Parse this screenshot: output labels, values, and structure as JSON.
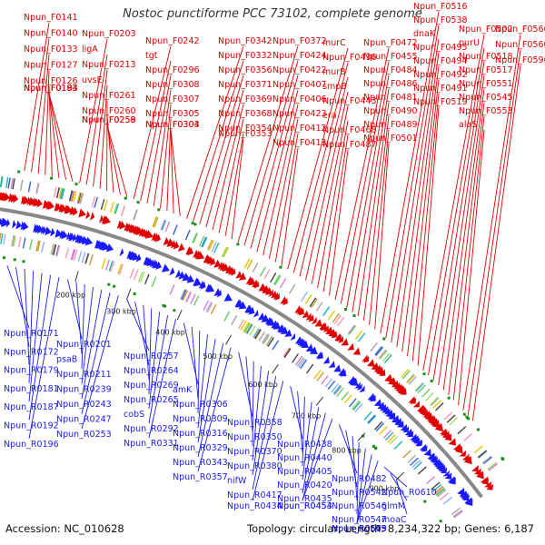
{
  "title": "Nostoc punctiforme PCC 73102, complete genome",
  "accession_text": "Accession: NC_010628",
  "summary_text": "Topology: circular; Length: 8,234,322 bp; Genes: 6,187",
  "colors": {
    "forward": "#e00000",
    "reverse": "#1a1aff",
    "backbone": "#888888"
  },
  "ticks": [
    "200 kbp",
    "300 kbp",
    "400 kbp",
    "500 kbp",
    "600 kbp",
    "700 kbp",
    "800 kbp",
    "900 kbp"
  ],
  "forward_labels": [
    "Npun_F0141",
    "Npun_F0140",
    "Npun_F0133",
    "Npun_F0127",
    "Npun_F0126",
    "Npun_F0194",
    "Npun_F0193",
    "Npun_F0183",
    "Npun_F0203",
    "ligA",
    "Npun_F0213",
    "uvsE",
    "Npun_F0261",
    "Npun_F0260",
    "Npun_F0259",
    "Npun_F0258",
    "Npun_F0242",
    "tgt",
    "Npun_F0296",
    "Npun_F0308",
    "Npun_F0307",
    "Npun_F0305",
    "Npun_F0304",
    "Npun_F0303",
    "Npun_F0342",
    "Npun_F0332",
    "Npun_F0356",
    "Npun_F0371",
    "Npun_F0369",
    "Npun_F0368",
    "Npun_F0354",
    "Npun_F0353",
    "Npun_F0372",
    "Npun_F0424",
    "Npun_F0422",
    "Npun_F0407",
    "Npun_F0406",
    "Npun_F0423",
    "Npun_F0412",
    "Npun_F0413",
    "murC",
    "Npun_F0436",
    "murB",
    "smpB",
    "Npun_F0443",
    "era",
    "Npun_F0468",
    "Npun_F0487",
    "Npun_F0472",
    "Npun_F0455",
    "Npun_F0484",
    "Npun_F0486",
    "Npun_F0481",
    "Npun_F0490",
    "Npun_F0489",
    "Npun_F0501",
    "Npun_F0516",
    "Npun_F0538",
    "dnaK",
    "Npun_F0495",
    "Npun_F0494",
    "Npun_F0492",
    "Npun_F0491",
    "Npun_F0519",
    "Npun_F0502",
    "purU",
    "Npun_F0518",
    "Npun_F0517",
    "Npun_F0551",
    "Npun_F0545",
    "Npun_F0553",
    "alaS",
    "Npun_F0566",
    "Npun_F0560",
    "Npun_F0596"
  ],
  "reverse_labels": [
    "Npun_R0171",
    "Npun_R0172",
    "Npun_R0179",
    "Npun_R0181",
    "Npun_R0187",
    "Npun_R0192",
    "Npun_R0196",
    "Npun_R0201",
    "psaB",
    "Npun_R0211",
    "Npun_R0239",
    "Npun_R0243",
    "Npun_R0247",
    "Npun_R0253",
    "Npun_R0257",
    "Npun_R0264",
    "Npun_R0269",
    "Npun_R0265",
    "cobS",
    "Npun_R0292",
    "Npun_R0331",
    "amK",
    "Npun_R0306",
    "Npun_R0309",
    "Npun_R0316",
    "Npun_R0329",
    "Npun_R0343",
    "Npun_R0357",
    "Npun_R0358",
    "Npun_R0350",
    "Npun_R0370",
    "Npun_R0380",
    "nifW",
    "Npun_R0417",
    "Npun_R0434",
    "Npun_R0438",
    "Npun_R0440",
    "Npun_R0405",
    "Npun_R0420",
    "Npun_R0435",
    "Npun_R0453",
    "Npun_R0454",
    "Npun_R0482",
    "Npun_R0542",
    "Npun_R0546",
    "Npun_R0547",
    "Npun_R0543",
    "Npun_R0579",
    "Npun_R0605",
    "Npun_R0610",
    "glmM",
    "moaC"
  ]
}
